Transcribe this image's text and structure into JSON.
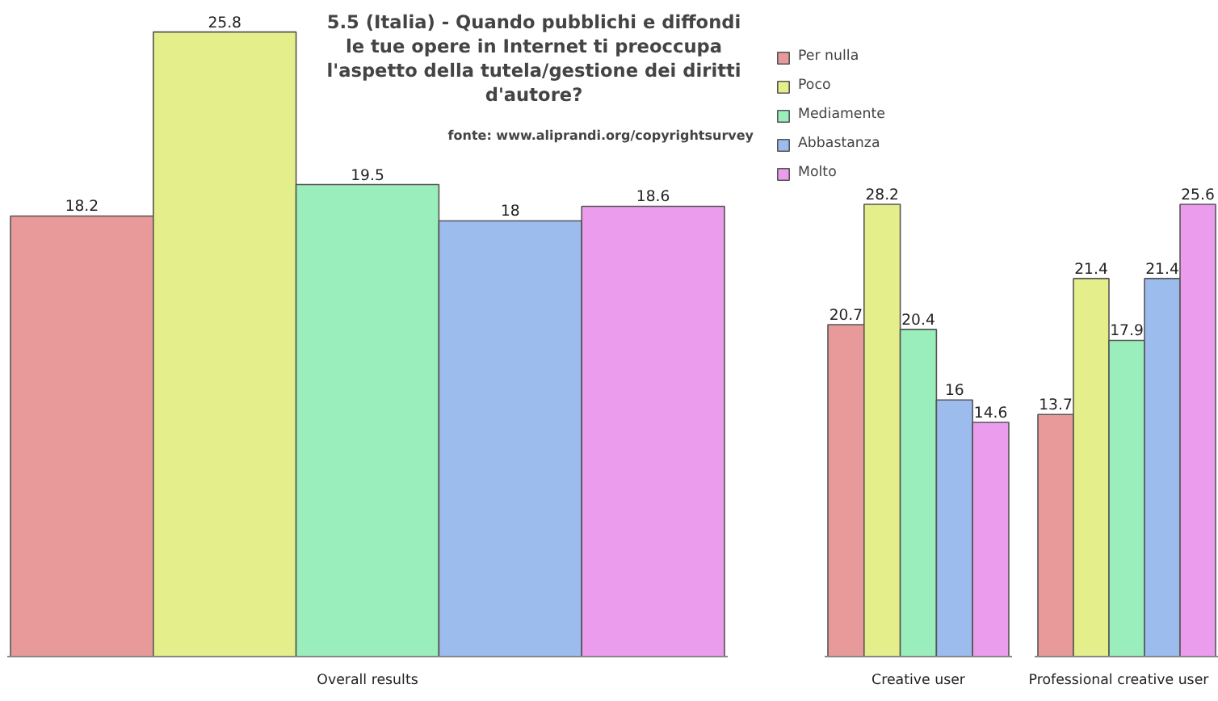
{
  "chart_data": [
    {
      "type": "bar",
      "title": "5.5 (Italia) - Quando pubblichi e diffondi le tue opere in Internet ti preoccupa l'aspetto della tutela/gestione dei diritti d'autore?",
      "annotations": [
        "fonte: www.aliprandi.org/copyrightsurvey"
      ],
      "xlabel": "Overall results",
      "categories": [
        null
      ],
      "data_labels": true,
      "legend": false,
      "grid": false,
      "series": [
        {
          "color": "#e89a9a",
          "values": [
            18.2
          ]
        },
        {
          "color": "#e4ee8a",
          "values": [
            25.8
          ]
        },
        {
          "color": "#9aeebc",
          "values": [
            19.5
          ]
        },
        {
          "color": "#9cbcee",
          "values": [
            18
          ]
        },
        {
          "color": "#ec9cec",
          "values": [
            18.6
          ]
        }
      ]
    },
    {
      "type": "bar",
      "xlabel": "Creative user",
      "categories": [
        null
      ],
      "data_labels": true,
      "legend": "top",
      "grid": false,
      "series": [
        {
          "name": "Per nulla",
          "color": "#e89a9a",
          "values": [
            20.7
          ]
        },
        {
          "name": "Poco",
          "color": "#e4ee8a",
          "values": [
            28.2
          ]
        },
        {
          "name": "Mediamente",
          "color": "#9aeebc",
          "values": [
            20.4
          ]
        },
        {
          "name": "Abbastanza",
          "color": "#9cbcee",
          "values": [
            16
          ]
        },
        {
          "name": "Molto",
          "color": "#ec9cec",
          "values": [
            14.6
          ]
        }
      ]
    },
    {
      "type": "bar",
      "xlabel": "Professional creative user",
      "categories": [
        null
      ],
      "data_labels": true,
      "legend": false,
      "grid": false,
      "series": [
        {
          "color": "#e89a9a",
          "values": [
            13.7
          ]
        },
        {
          "color": "#e4ee8a",
          "values": [
            21.4
          ]
        },
        {
          "color": "#9aeebc",
          "values": [
            17.9
          ]
        },
        {
          "color": "#9cbcee",
          "values": [
            21.4
          ]
        },
        {
          "color": "#ec9cec",
          "values": [
            25.6
          ]
        }
      ]
    }
  ]
}
